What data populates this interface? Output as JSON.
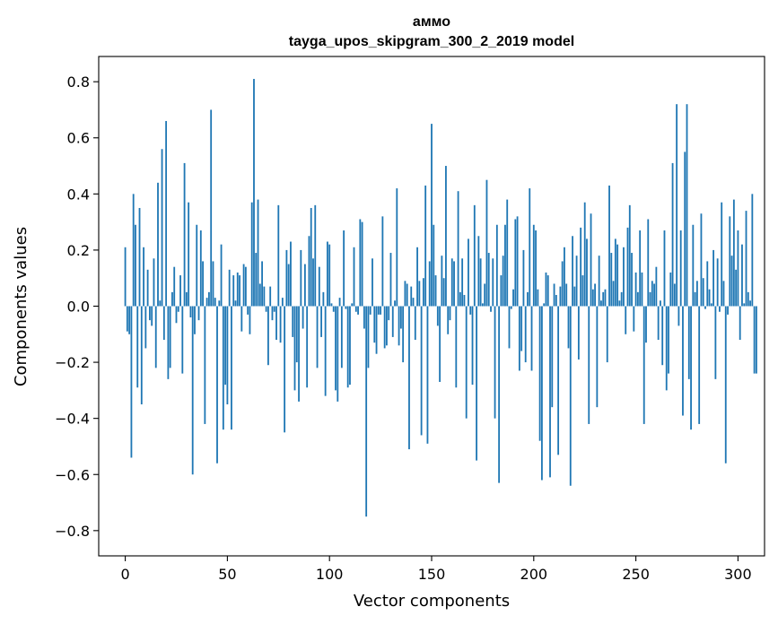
{
  "chart_data": {
    "type": "bar",
    "title": "аммо",
    "subtitle": "tayga_upos_skipgram_300_2_2019 model",
    "xlabel": "Vector components",
    "ylabel": "Components values",
    "xlim": [
      -13,
      313
    ],
    "ylim": [
      -0.89,
      0.89
    ],
    "xticks": [
      0,
      50,
      100,
      150,
      200,
      250,
      300
    ],
    "yticks": [
      -0.8,
      -0.6,
      -0.4,
      -0.2,
      0.0,
      0.2,
      0.4,
      0.6,
      0.8
    ],
    "ytick_labels": [
      "−0.8",
      "−0.6",
      "−0.4",
      "−0.2",
      "0.0",
      "0.2",
      "0.4",
      "0.6",
      "0.8"
    ],
    "bar_color": "#1f77b4",
    "values": [
      0.21,
      -0.09,
      -0.1,
      -0.54,
      0.4,
      0.29,
      -0.29,
      0.35,
      -0.35,
      0.21,
      -0.15,
      0.13,
      -0.05,
      -0.07,
      0.17,
      -0.22,
      0.44,
      0.02,
      0.56,
      -0.12,
      0.66,
      -0.26,
      -0.22,
      0.05,
      0.14,
      -0.06,
      -0.02,
      0.11,
      -0.24,
      0.51,
      0.05,
      0.37,
      -0.04,
      -0.6,
      -0.1,
      0.29,
      -0.05,
      0.27,
      0.16,
      -0.42,
      0.03,
      0.05,
      0.7,
      0.16,
      0.03,
      -0.56,
      0.02,
      0.22,
      -0.44,
      -0.28,
      -0.35,
      0.13,
      -0.44,
      0.11,
      0.02,
      0.12,
      0.11,
      -0.09,
      0.15,
      0.14,
      -0.03,
      -0.1,
      0.37,
      0.81,
      0.19,
      0.38,
      0.08,
      0.16,
      0.07,
      -0.02,
      -0.21,
      0.07,
      -0.05,
      -0.02,
      -0.12,
      0.36,
      -0.13,
      0.03,
      -0.45,
      0.2,
      0.15,
      0.23,
      -0.11,
      -0.3,
      -0.2,
      -0.34,
      0.2,
      -0.08,
      0.15,
      -0.29,
      0.25,
      0.35,
      0.17,
      0.36,
      -0.22,
      0.14,
      -0.11,
      0.05,
      -0.32,
      0.23,
      0.22,
      0.01,
      -0.02,
      -0.3,
      -0.34,
      0.03,
      -0.22,
      0.27,
      -0.01,
      -0.29,
      -0.28,
      0.01,
      0.21,
      -0.02,
      -0.03,
      0.31,
      0.3,
      -0.08,
      -0.75,
      -0.22,
      -0.03,
      0.17,
      -0.13,
      -0.17,
      -0.03,
      -0.03,
      0.32,
      -0.15,
      -0.14,
      -0.05,
      0.19,
      -0.11,
      0.02,
      0.42,
      -0.14,
      -0.08,
      -0.2,
      0.09,
      0.08,
      -0.51,
      0.07,
      0.03,
      -0.12,
      0.21,
      0.09,
      -0.46,
      0.1,
      0.43,
      -0.49,
      0.16,
      0.65,
      0.29,
      0.11,
      -0.07,
      -0.27,
      0.18,
      0.1,
      0.5,
      -0.1,
      -0.05,
      0.17,
      0.16,
      -0.29,
      0.41,
      0.05,
      0.17,
      0.04,
      -0.4,
      0.24,
      -0.03,
      -0.28,
      0.36,
      -0.55,
      0.25,
      0.17,
      0.01,
      0.08,
      0.45,
      0.19,
      -0.02,
      0.17,
      -0.4,
      0.29,
      -0.63,
      0.11,
      0.18,
      0.29,
      0.38,
      -0.15,
      -0.01,
      0.06,
      0.31,
      0.32,
      -0.23,
      -0.16,
      0.2,
      -0.2,
      0.05,
      0.42,
      -0.23,
      0.29,
      0.27,
      0.06,
      -0.48,
      -0.62,
      0.01,
      0.12,
      0.11,
      -0.61,
      -0.36,
      0.08,
      0.04,
      -0.53,
      0.07,
      0.16,
      0.21,
      0.08,
      -0.15,
      -0.64,
      0.25,
      0.07,
      0.18,
      -0.19,
      0.28,
      0.11,
      0.37,
      0.24,
      -0.42,
      0.33,
      0.06,
      0.08,
      -0.36,
      0.18,
      0.02,
      0.05,
      0.06,
      -0.2,
      0.43,
      0.19,
      0.09,
      0.24,
      0.22,
      0.02,
      0.05,
      0.21,
      -0.1,
      0.28,
      0.36,
      0.19,
      -0.09,
      0.12,
      0.05,
      0.27,
      0.12,
      -0.42,
      -0.13,
      0.31,
      0.05,
      0.09,
      0.08,
      0.14,
      -0.12,
      0.02,
      -0.21,
      0.27,
      -0.3,
      -0.24,
      0.12,
      0.51,
      0.08,
      0.72,
      -0.07,
      0.27,
      -0.39,
      0.55,
      0.72,
      -0.26,
      -0.44,
      0.29,
      0.05,
      0.09,
      -0.42,
      0.33,
      0.1,
      -0.01,
      0.16,
      0.06,
      0.01,
      0.2,
      -0.26,
      0.17,
      -0.02,
      0.37,
      0.09,
      -0.56,
      -0.03,
      0.32,
      0.18,
      0.38,
      0.13,
      0.27,
      -0.12,
      0.22,
      0.01,
      0.34,
      0.05,
      0.02,
      0.4,
      -0.24,
      -0.24
    ]
  }
}
